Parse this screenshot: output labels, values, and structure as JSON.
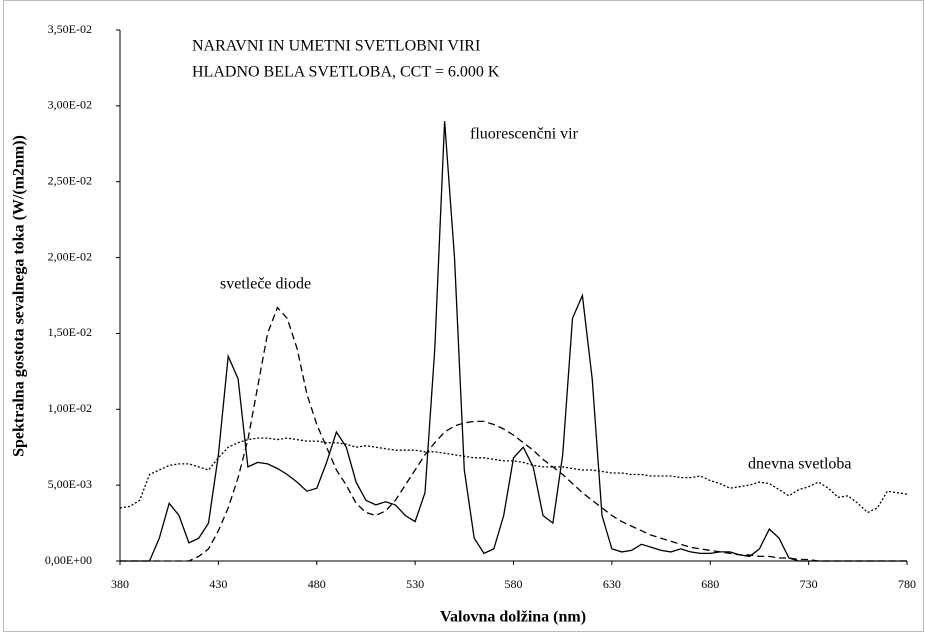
{
  "chart_data": {
    "type": "line",
    "title": [
      "NARAVNI IN UMETNI SVETLOBNI VIRI",
      "HLADNO BELA SVETLOBA, CCT = 6.000 K"
    ],
    "x_label": "Valovna dolžina (nm)",
    "y_label": "Spektralna gostota sevalnega toka (W/(m2nm))",
    "x": [
      380,
      385,
      390,
      395,
      400,
      405,
      410,
      415,
      420,
      425,
      430,
      435,
      440,
      445,
      450,
      455,
      460,
      465,
      470,
      475,
      480,
      485,
      490,
      495,
      500,
      505,
      510,
      515,
      520,
      525,
      530,
      535,
      540,
      545,
      550,
      555,
      560,
      565,
      570,
      575,
      580,
      585,
      590,
      595,
      600,
      605,
      610,
      615,
      620,
      625,
      630,
      635,
      640,
      645,
      650,
      655,
      660,
      665,
      670,
      675,
      680,
      685,
      690,
      695,
      700,
      705,
      710,
      715,
      720,
      725,
      730,
      735,
      740,
      745,
      750,
      755,
      760,
      765,
      770,
      775,
      780
    ],
    "series": [
      {
        "name": "fluorescenčni vir",
        "color": "#000000",
        "style": "solid",
        "values": [
          0,
          0,
          0,
          0,
          0.0015,
          0.0038,
          0.003,
          0.0012,
          0.0015,
          0.0025,
          0.007,
          0.0135,
          0.012,
          0.0062,
          0.0065,
          0.0064,
          0.0061,
          0.0057,
          0.0052,
          0.0046,
          0.0048,
          0.0065,
          0.0085,
          0.0075,
          0.0052,
          0.004,
          0.0037,
          0.0039,
          0.0037,
          0.003,
          0.0026,
          0.0045,
          0.014,
          0.029,
          0.02,
          0.006,
          0.0015,
          0.0005,
          0.0008,
          0.003,
          0.0068,
          0.0075,
          0.0062,
          0.003,
          0.0025,
          0.007,
          0.016,
          0.0175,
          0.012,
          0.003,
          0.0008,
          0.0006,
          0.0007,
          0.0011,
          0.0009,
          0.0007,
          0.0006,
          0.0008,
          0.0006,
          0.0005,
          0.0005,
          0.0006,
          0.0006,
          0.0004,
          0.0003,
          0.0008,
          0.0021,
          0.0015,
          0.0002,
          0,
          0,
          0,
          0,
          0,
          0,
          0,
          0,
          0,
          0,
          0,
          0
        ]
      },
      {
        "name": "svetleče diode",
        "color": "#000000",
        "style": "dashed",
        "values": [
          0,
          0,
          0,
          0,
          0,
          0,
          0,
          0,
          0.0003,
          0.0008,
          0.002,
          0.0035,
          0.0055,
          0.008,
          0.0115,
          0.015,
          0.0167,
          0.016,
          0.014,
          0.011,
          0.009,
          0.0075,
          0.006,
          0.005,
          0.0038,
          0.0032,
          0.003,
          0.0033,
          0.004,
          0.005,
          0.006,
          0.007,
          0.0078,
          0.0085,
          0.0089,
          0.0091,
          0.0092,
          0.0092,
          0.009,
          0.0087,
          0.0083,
          0.0078,
          0.0073,
          0.0067,
          0.0062,
          0.0057,
          0.0051,
          0.0045,
          0.004,
          0.0035,
          0.003,
          0.0026,
          0.0023,
          0.002,
          0.0017,
          0.0015,
          0.0013,
          0.0011,
          0.0009,
          0.0008,
          0.0007,
          0.0006,
          0.0005,
          0.0004,
          0.0004,
          0.0003,
          0.0003,
          0.0002,
          0.0002,
          0.0001,
          0.0001,
          0,
          0,
          0,
          0,
          0,
          0,
          0,
          0,
          0,
          0
        ]
      },
      {
        "name": "dnevna svetloba",
        "color": "#000000",
        "style": "dotted",
        "values": [
          0.0035,
          0.0036,
          0.004,
          0.0057,
          0.006,
          0.0063,
          0.0064,
          0.0064,
          0.0062,
          0.006,
          0.0068,
          0.0075,
          0.0078,
          0.008,
          0.0081,
          0.0081,
          0.008,
          0.0081,
          0.008,
          0.0079,
          0.0079,
          0.0078,
          0.0078,
          0.0077,
          0.0075,
          0.0076,
          0.0075,
          0.0074,
          0.0073,
          0.0073,
          0.0073,
          0.0072,
          0.0072,
          0.0071,
          0.007,
          0.0069,
          0.0068,
          0.0068,
          0.0067,
          0.0066,
          0.0066,
          0.0065,
          0.0063,
          0.0062,
          0.0062,
          0.0062,
          0.0061,
          0.006,
          0.006,
          0.0059,
          0.0058,
          0.0058,
          0.0057,
          0.0057,
          0.0056,
          0.0056,
          0.0056,
          0.0055,
          0.0055,
          0.0056,
          0.0053,
          0.0051,
          0.0048,
          0.0049,
          0.005,
          0.0052,
          0.0051,
          0.0047,
          0.0043,
          0.0047,
          0.0049,
          0.0052,
          0.0048,
          0.0042,
          0.0043,
          0.0038,
          0.0032,
          0.0035,
          0.0046,
          0.0045,
          0.0044
        ]
      }
    ],
    "xlim": [
      380,
      780
    ],
    "xticks": [
      380,
      430,
      480,
      530,
      580,
      630,
      680,
      730,
      780
    ],
    "ylim": [
      0,
      0.035
    ],
    "yticks": [
      {
        "value": 0,
        "label": "0,00E+00"
      },
      {
        "value": 0.005,
        "label": "5,00E-03"
      },
      {
        "value": 0.01,
        "label": "1,00E-02"
      },
      {
        "value": 0.015,
        "label": "1,50E-02"
      },
      {
        "value": 0.02,
        "label": "2,00E-02"
      },
      {
        "value": 0.025,
        "label": "2,50E-02"
      },
      {
        "value": 0.03,
        "label": "3,00E-02"
      },
      {
        "value": 0.035,
        "label": "3,50E-02"
      }
    ],
    "grid": false
  }
}
